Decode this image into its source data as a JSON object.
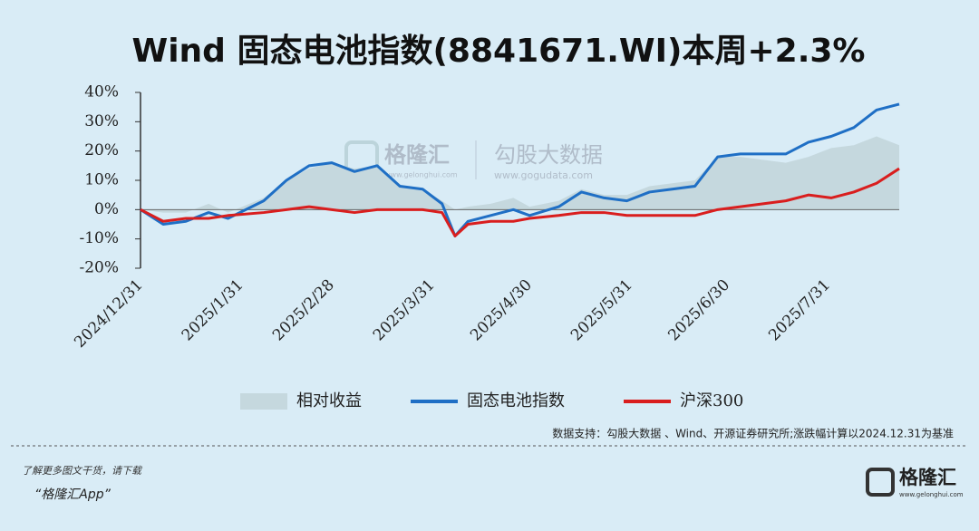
{
  "chart_data": {
    "type": "line",
    "title": "Wind 固态电池指数(8841671.WI)本周+2.3%",
    "x": [
      "2024/12/31",
      "2025/1/7",
      "2025/1/14",
      "2025/1/21",
      "2025/1/27",
      "2025/2/7",
      "2025/2/14",
      "2025/2/21",
      "2025/2/28",
      "2025/3/7",
      "2025/3/14",
      "2025/3/21",
      "2025/3/28",
      "2025/4/3",
      "2025/4/7",
      "2025/4/11",
      "2025/4/18",
      "2025/4/25",
      "2025/4/30",
      "2025/5/9",
      "2025/5/16",
      "2025/5/23",
      "2025/5/30",
      "2025/6/6",
      "2025/6/13",
      "2025/6/20",
      "2025/6/27",
      "2025/7/4",
      "2025/7/11",
      "2025/7/18",
      "2025/7/25",
      "2025/8/1",
      "2025/8/8",
      "2025/8/15",
      "2025/8/22"
    ],
    "xlim": [
      "2024/12/31",
      "2025/8/22"
    ],
    "xticks": [
      "2024/12/31",
      "2025/1/31",
      "2025/2/28",
      "2025/3/31",
      "2025/4/30",
      "2025/5/31",
      "2025/6/30",
      "2025/7/31"
    ],
    "ylim": [
      -20,
      40
    ],
    "yticks": [
      {
        "value": -20,
        "label": "-20%"
      },
      {
        "value": -10,
        "label": "-10%"
      },
      {
        "value": 0,
        "label": "0%"
      },
      {
        "value": 10,
        "label": "10%"
      },
      {
        "value": 20,
        "label": "20%"
      },
      {
        "value": 30,
        "label": "30%"
      },
      {
        "value": 40,
        "label": "40%"
      }
    ],
    "series": [
      {
        "name": "相对收益",
        "color": "#c5d8de",
        "style": "area",
        "values": [
          0,
          -1,
          -1,
          2,
          -1,
          4,
          10,
          14,
          16,
          14,
          15,
          8,
          7,
          3,
          0,
          1,
          2,
          4,
          1,
          3,
          7,
          5,
          5,
          8,
          9,
          10,
          18,
          18,
          17,
          16,
          18,
          21,
          22,
          25,
          22
        ]
      },
      {
        "name": "固态电池指数",
        "color": "#1f6fc5",
        "style": "line",
        "values": [
          0,
          -5,
          -4,
          -1,
          -3,
          3,
          10,
          15,
          16,
          13,
          15,
          8,
          7,
          2,
          -9,
          -4,
          -2,
          0,
          -2,
          1,
          6,
          4,
          3,
          6,
          7,
          8,
          18,
          19,
          19,
          19,
          23,
          25,
          28,
          34,
          36
        ]
      },
      {
        "name": "沪深300",
        "color": "#d91e1e",
        "style": "line",
        "values": [
          0,
          -4,
          -3,
          -3,
          -2,
          -1,
          0,
          1,
          0,
          -1,
          0,
          0,
          0,
          -1,
          -9,
          -5,
          -4,
          -4,
          -3,
          -2,
          -1,
          -1,
          -2,
          -2,
          -2,
          -2,
          0,
          1,
          2,
          3,
          5,
          4,
          6,
          9,
          14
        ]
      }
    ],
    "source": "数据支持：勾股大数据 、Wind、开源证券研究所;涨跌幅计算以2024.12.31为基准"
  },
  "watermark": {
    "brand": "格隆汇",
    "brand_url": "www.gelonghui.com",
    "data": "勾股大数据",
    "data_url": "www.gogudata.com"
  },
  "footer": {
    "line1": "了解更多图文干货，请下载",
    "line2": "“格隆汇App”",
    "logo": "格隆汇",
    "logo_url": "www.gelonghui.com"
  }
}
